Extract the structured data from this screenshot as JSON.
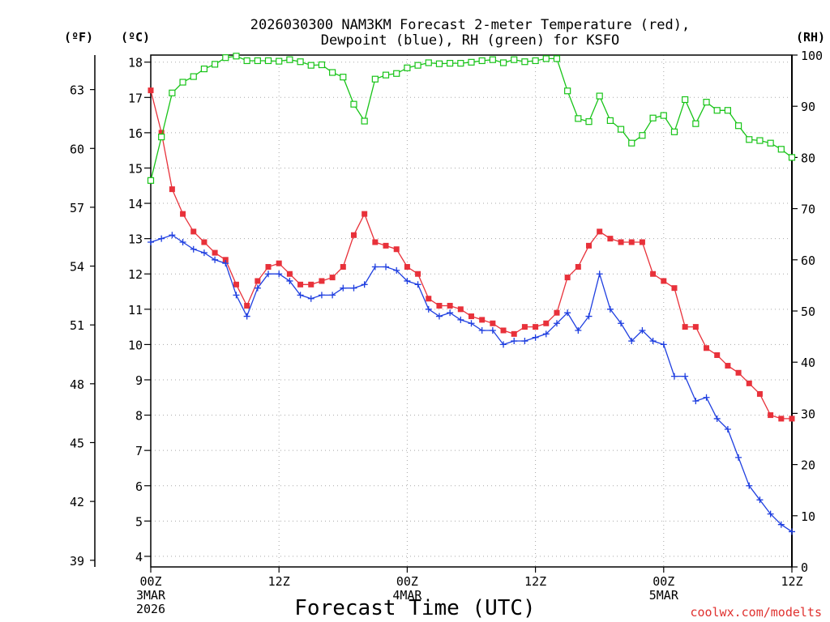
{
  "chart_data": {
    "type": "line",
    "title_line1": "2026030300 NAM3KM Forecast 2-meter Temperature (red),",
    "title_line2": "Dewpoint (blue), RH (green) for KSFO",
    "xlabel": "Forecast Time (UTC)",
    "credit": "coolwx.com/modelts",
    "units": {
      "fahrenheit": "(ºF)",
      "celsius": "(ºC)",
      "rh": "(RH)"
    },
    "x_range_hours": [
      0,
      60
    ],
    "x_ticks": [
      {
        "hour": 0,
        "lines": [
          "00Z",
          "3MAR",
          "2026"
        ]
      },
      {
        "hour": 12,
        "lines": [
          "12Z"
        ]
      },
      {
        "hour": 24,
        "lines": [
          "00Z",
          "4MAR"
        ]
      },
      {
        "hour": 36,
        "lines": [
          "12Z"
        ]
      },
      {
        "hour": 48,
        "lines": [
          "00Z",
          "5MAR"
        ]
      },
      {
        "hour": 60,
        "lines": [
          "12Z"
        ]
      }
    ],
    "y_celsius_range": [
      3.7,
      18.2
    ],
    "y_celsius_ticks": [
      4,
      5,
      6,
      7,
      8,
      9,
      10,
      11,
      12,
      13,
      14,
      15,
      16,
      17,
      18
    ],
    "y_fahrenheit_ticks": [
      39,
      42,
      45,
      48,
      51,
      54,
      57,
      60,
      63
    ],
    "y_rh_range": [
      0,
      100
    ],
    "y_rh_ticks": [
      0,
      10,
      20,
      30,
      40,
      50,
      60,
      70,
      80,
      90,
      100
    ],
    "series": [
      {
        "name": "Temperature",
        "units": "C",
        "color": "#e8313a",
        "marker": "filled-square",
        "hours": [
          0,
          1,
          2,
          3,
          4,
          5,
          6,
          7,
          8,
          9,
          10,
          11,
          12,
          13,
          14,
          15,
          16,
          17,
          18,
          19,
          20,
          21,
          22,
          23,
          24,
          25,
          26,
          27,
          28,
          29,
          30,
          31,
          32,
          33,
          34,
          35,
          36,
          37,
          38,
          39,
          40,
          41,
          42,
          43,
          44,
          45,
          46,
          47,
          48,
          49,
          50,
          51,
          52,
          53,
          54,
          55,
          56,
          57,
          58,
          59,
          60
        ],
        "values": [
          17.2,
          16.0,
          14.4,
          13.7,
          13.2,
          12.9,
          12.6,
          12.4,
          11.7,
          11.1,
          11.8,
          12.2,
          12.3,
          12.0,
          11.7,
          11.7,
          11.8,
          11.9,
          12.2,
          13.1,
          13.7,
          12.9,
          12.8,
          12.7,
          12.2,
          12.0,
          11.3,
          11.1,
          11.1,
          11.0,
          10.8,
          10.7,
          10.6,
          10.4,
          10.3,
          10.5,
          10.5,
          10.6,
          10.9,
          11.9,
          12.2,
          12.8,
          13.2,
          13.0,
          12.9,
          12.9,
          12.9,
          12.0,
          11.8,
          11.6,
          10.5,
          10.5,
          9.9,
          9.7,
          9.4,
          9.2,
          8.9,
          8.6,
          8.0,
          7.9,
          7.9
        ]
      },
      {
        "name": "Dewpoint",
        "units": "C",
        "color": "#1f3fe0",
        "marker": "plus",
        "hours": [
          0,
          1,
          2,
          3,
          4,
          5,
          6,
          7,
          8,
          9,
          10,
          11,
          12,
          13,
          14,
          15,
          16,
          17,
          18,
          19,
          20,
          21,
          22,
          23,
          24,
          25,
          26,
          27,
          28,
          29,
          30,
          31,
          32,
          33,
          34,
          35,
          36,
          37,
          38,
          39,
          40,
          41,
          42,
          43,
          44,
          45,
          46,
          47,
          48,
          49,
          50,
          51,
          52,
          53,
          54,
          55,
          56,
          57,
          58,
          59,
          60
        ],
        "values": [
          12.9,
          13.0,
          13.1,
          12.9,
          12.7,
          12.6,
          12.4,
          12.3,
          11.4,
          10.8,
          11.6,
          12.0,
          12.0,
          11.8,
          11.4,
          11.3,
          11.4,
          11.4,
          11.6,
          11.6,
          11.7,
          12.2,
          12.2,
          12.1,
          11.8,
          11.7,
          11.0,
          10.8,
          10.9,
          10.7,
          10.6,
          10.4,
          10.4,
          10.0,
          10.1,
          10.1,
          10.2,
          10.3,
          10.6,
          10.9,
          10.4,
          10.8,
          12.0,
          11.0,
          10.6,
          10.1,
          10.4,
          10.1,
          10.0,
          9.1,
          9.1,
          8.4,
          8.5,
          7.9,
          7.6,
          6.8,
          6.0,
          5.6,
          5.2,
          4.9,
          4.7
        ]
      },
      {
        "name": "RH",
        "units": "%",
        "color": "#18c418",
        "marker": "open-square",
        "hours": [
          0,
          1,
          2,
          3,
          4,
          5,
          6,
          7,
          8,
          9,
          10,
          11,
          12,
          13,
          14,
          15,
          16,
          17,
          18,
          19,
          20,
          21,
          22,
          23,
          24,
          25,
          26,
          27,
          28,
          29,
          30,
          31,
          32,
          33,
          34,
          35,
          36,
          37,
          38,
          39,
          40,
          41,
          42,
          43,
          44,
          45,
          46,
          47,
          48,
          49,
          50,
          51,
          52,
          53,
          54,
          55,
          56,
          57,
          58,
          59,
          60
        ],
        "values": [
          75.5,
          84.0,
          92.6,
          94.7,
          95.8,
          97.3,
          98.2,
          99.5,
          99.8,
          98.9,
          98.9,
          98.9,
          98.8,
          99.1,
          98.7,
          98.0,
          98.1,
          96.6,
          95.7,
          90.4,
          87.1,
          95.3,
          96.1,
          96.4,
          97.5,
          98.0,
          98.5,
          98.3,
          98.4,
          98.4,
          98.6,
          98.9,
          99.1,
          98.5,
          99.1,
          98.7,
          98.9,
          99.3,
          99.3,
          93.0,
          87.6,
          87.0,
          92.0,
          87.2,
          85.5,
          82.8,
          84.3,
          87.7,
          88.2,
          85.0,
          91.3,
          86.6,
          90.8,
          89.2,
          89.2,
          86.2,
          83.5,
          83.3,
          82.8,
          81.6,
          80.0
        ]
      }
    ]
  }
}
